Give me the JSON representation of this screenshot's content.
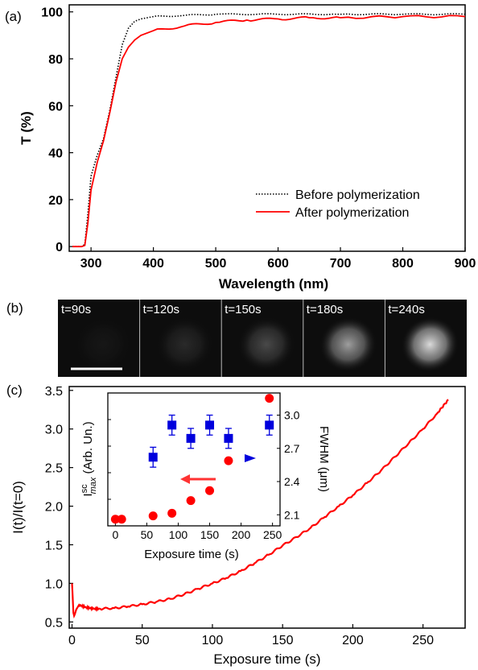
{
  "panel_labels": [
    "(a)",
    "(b)",
    "(c)"
  ],
  "colors": {
    "before": "#000000",
    "after": "#ff0000",
    "fwhm": "#0000dd",
    "intensity": "#ff0000",
    "image_bg": "#000000"
  },
  "panel_b": {
    "frames": [
      {
        "label": "t=90s",
        "spot_level": 0.04
      },
      {
        "label": "t=120s",
        "spot_level": 0.12
      },
      {
        "label": "t=150s",
        "spot_level": 0.25
      },
      {
        "label": "t=180s",
        "spot_level": 0.6
      },
      {
        "label": "t=240s",
        "spot_level": 0.85
      }
    ]
  },
  "chart_data": [
    {
      "type": "line",
      "panel": "(a)",
      "xlabel": "Wavelength (nm)",
      "ylabel": "T (%)",
      "xlim": [
        265,
        900
      ],
      "ylim": [
        -2,
        103
      ],
      "xticks": [
        300,
        400,
        500,
        600,
        700,
        800,
        900
      ],
      "yticks": [
        0,
        20,
        40,
        60,
        80,
        100
      ],
      "legend": "bottom-right",
      "series": [
        {
          "name": "Before polymerization",
          "style": "dotted",
          "x": [
            270,
            285,
            290,
            295,
            300,
            310,
            320,
            330,
            340,
            350,
            360,
            370,
            380,
            400,
            450,
            500,
            600,
            700,
            800,
            900
          ],
          "y": [
            0,
            0,
            1,
            14,
            30,
            39,
            46,
            58,
            72,
            86,
            93,
            96,
            97,
            98,
            98.5,
            99,
            99,
            99,
            99,
            99
          ]
        },
        {
          "name": "After polymerization",
          "style": "solid",
          "x": [
            270,
            285,
            290,
            295,
            300,
            310,
            320,
            330,
            340,
            350,
            360,
            370,
            380,
            400,
            450,
            500,
            550,
            600,
            650,
            700,
            800,
            900
          ],
          "y": [
            0,
            0,
            0.5,
            10,
            24,
            36,
            45,
            57,
            70,
            80,
            85,
            88,
            90,
            92,
            94,
            95.5,
            96.5,
            97,
            97.5,
            97.5,
            98,
            98
          ]
        }
      ]
    },
    {
      "type": "line",
      "panel": "(c)",
      "xlabel": "Exposure time (s)",
      "ylabel": "I(t)/I(t=0)",
      "xlim": [
        -2,
        280
      ],
      "ylim": [
        0.42,
        3.55
      ],
      "xticks": [
        0,
        50,
        100,
        150,
        200,
        250
      ],
      "yticks": [
        0.5,
        1.0,
        1.5,
        2.0,
        2.5,
        3.0,
        3.5
      ],
      "series": [
        {
          "name": "",
          "x": [
            0,
            0.3,
            1,
            1.5,
            2,
            3,
            5,
            10,
            15,
            20,
            30,
            40,
            50,
            60,
            70,
            80,
            90,
            100,
            110,
            120,
            130,
            140,
            150,
            160,
            170,
            180,
            190,
            200,
            210,
            220,
            230,
            240,
            250,
            260,
            268
          ],
          "y": [
            1.0,
            0.9,
            0.62,
            0.58,
            0.6,
            0.66,
            0.72,
            0.69,
            0.67,
            0.67,
            0.68,
            0.7,
            0.73,
            0.76,
            0.8,
            0.86,
            0.93,
            1.0,
            1.07,
            1.16,
            1.26,
            1.37,
            1.49,
            1.6,
            1.72,
            1.86,
            2.0,
            2.14,
            2.3,
            2.46,
            2.64,
            2.82,
            3.0,
            3.2,
            3.38
          ]
        }
      ]
    },
    {
      "type": "scatter",
      "panel": "(c) inset",
      "xlabel": "Exposure time (s)",
      "ylabel": "I",
      "ylabel_sup": "sc",
      "ylabel_sub": "max",
      "ylabel_tail": " (Arb. Un.)",
      "y2label": "FWHM (μm)",
      "xlim": [
        -12,
        262
      ],
      "y2lim": [
        2.0,
        3.2
      ],
      "xticks": [
        0,
        50,
        100,
        150,
        200,
        250
      ],
      "y2ticks": [
        2.1,
        2.4,
        2.7,
        3.0
      ],
      "ylim": [
        0,
        1
      ],
      "series": [
        {
          "name": "",
          "axis": "left",
          "marker": "circle",
          "x": [
            0,
            10,
            60,
            90,
            120,
            150,
            180,
            245
          ],
          "y": [
            0.05,
            0.05,
            0.075,
            0.095,
            0.19,
            0.265,
            0.49,
            0.96
          ]
        },
        {
          "name": "",
          "axis": "right",
          "marker": "square",
          "x": [
            60,
            90,
            120,
            150,
            180,
            245
          ],
          "y": [
            2.62,
            2.91,
            2.79,
            2.91,
            2.79,
            2.91
          ],
          "err": [
            0.09,
            0.09,
            0.09,
            0.09,
            0.09,
            0.09
          ]
        }
      ]
    }
  ]
}
